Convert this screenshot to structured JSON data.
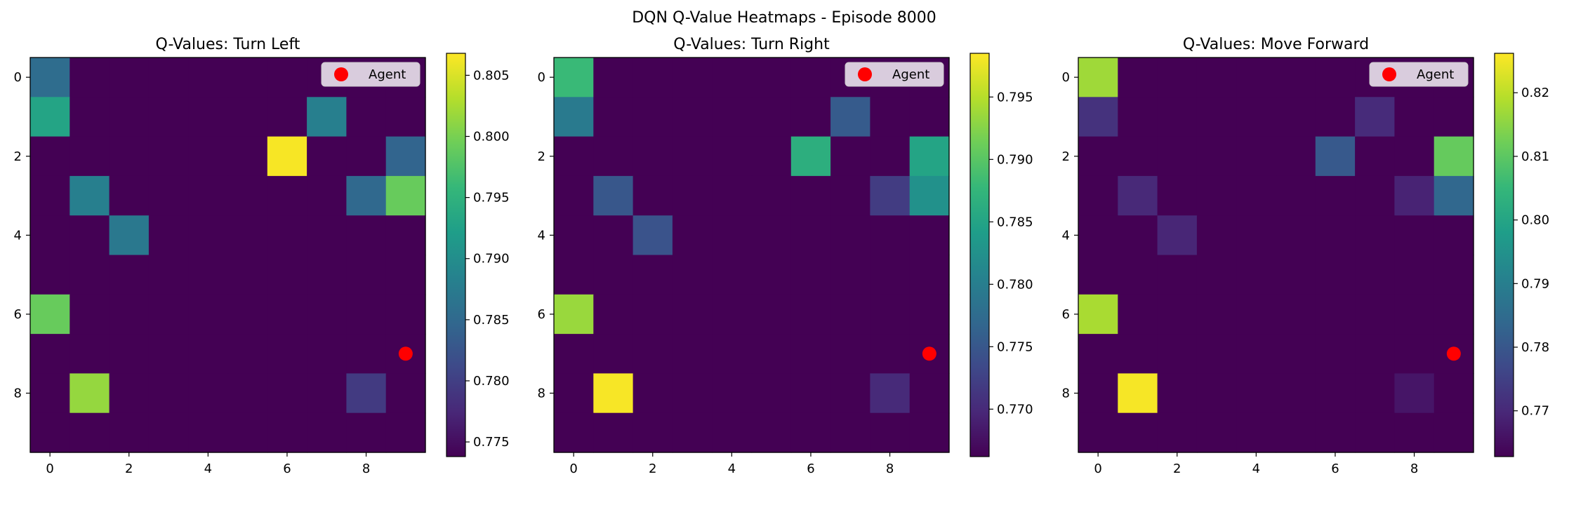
{
  "figure": {
    "suptitle": "DQN Q-Value Heatmaps - Episode 8000"
  },
  "colormap": {
    "name": "viridis",
    "stops": [
      "#440154",
      "#482878",
      "#3e4989",
      "#31688e",
      "#26828e",
      "#1f9e89",
      "#35b779",
      "#6ece58",
      "#b5de2b",
      "#fde725"
    ]
  },
  "agent_color": "#ff0000",
  "chart_data": [
    {
      "type": "heatmap",
      "title": "Q-Values: Turn Left",
      "x_ticks": [
        0,
        2,
        4,
        6,
        8
      ],
      "y_ticks": [
        0,
        2,
        4,
        6,
        8
      ],
      "grid_size": [
        10,
        10
      ],
      "base_value": 0.7738,
      "cells": [
        {
          "row": 0,
          "col": 0,
          "value": 0.7855
        },
        {
          "row": 1,
          "col": 0,
          "value": 0.793
        },
        {
          "row": 1,
          "col": 7,
          "value": 0.788
        },
        {
          "row": 2,
          "col": 6,
          "value": 0.8065
        },
        {
          "row": 2,
          "col": 9,
          "value": 0.7845
        },
        {
          "row": 3,
          "col": 1,
          "value": 0.788
        },
        {
          "row": 3,
          "col": 8,
          "value": 0.785
        },
        {
          "row": 3,
          "col": 9,
          "value": 0.799
        },
        {
          "row": 4,
          "col": 2,
          "value": 0.787
        },
        {
          "row": 6,
          "col": 0,
          "value": 0.799
        },
        {
          "row": 8,
          "col": 1,
          "value": 0.8015
        },
        {
          "row": 8,
          "col": 8,
          "value": 0.7795
        }
      ],
      "agent": {
        "x": 9,
        "y": 7,
        "label": "Agent"
      },
      "colorbar": {
        "min": 0.7738,
        "max": 0.8068,
        "ticks": [
          "0.775",
          "0.780",
          "0.785",
          "0.790",
          "0.795",
          "0.800",
          "0.805"
        ]
      }
    },
    {
      "type": "heatmap",
      "title": "Q-Values: Turn Right",
      "x_ticks": [
        0,
        2,
        4,
        6,
        8
      ],
      "y_ticks": [
        0,
        2,
        4,
        6,
        8
      ],
      "grid_size": [
        10,
        10
      ],
      "base_value": 0.7662,
      "cells": [
        {
          "row": 0,
          "col": 0,
          "value": 0.788
        },
        {
          "row": 1,
          "col": 0,
          "value": 0.7795
        },
        {
          "row": 1,
          "col": 7,
          "value": 0.7755
        },
        {
          "row": 2,
          "col": 6,
          "value": 0.7865
        },
        {
          "row": 2,
          "col": 9,
          "value": 0.785
        },
        {
          "row": 3,
          "col": 1,
          "value": 0.775
        },
        {
          "row": 3,
          "col": 8,
          "value": 0.772
        },
        {
          "row": 3,
          "col": 9,
          "value": 0.7825
        },
        {
          "row": 4,
          "col": 2,
          "value": 0.7745
        },
        {
          "row": 6,
          "col": 0,
          "value": 0.7935
        },
        {
          "row": 8,
          "col": 1,
          "value": 0.7982
        },
        {
          "row": 8,
          "col": 8,
          "value": 0.77
        }
      ],
      "agent": {
        "x": 9,
        "y": 7,
        "label": "Agent"
      },
      "colorbar": {
        "min": 0.7662,
        "max": 0.7985,
        "ticks": [
          "0.770",
          "0.775",
          "0.780",
          "0.785",
          "0.790",
          "0.795"
        ]
      }
    },
    {
      "type": "heatmap",
      "title": "Q-Values: Move Forward",
      "x_ticks": [
        0,
        2,
        4,
        6,
        8
      ],
      "y_ticks": [
        0,
        2,
        4,
        6,
        8
      ],
      "grid_size": [
        10,
        10
      ],
      "base_value": 0.7628,
      "cells": [
        {
          "row": 0,
          "col": 0,
          "value": 0.817
        },
        {
          "row": 1,
          "col": 0,
          "value": 0.772
        },
        {
          "row": 1,
          "col": 7,
          "value": 0.7705
        },
        {
          "row": 2,
          "col": 6,
          "value": 0.7805
        },
        {
          "row": 2,
          "col": 9,
          "value": 0.811
        },
        {
          "row": 3,
          "col": 1,
          "value": 0.77
        },
        {
          "row": 3,
          "col": 8,
          "value": 0.769
        },
        {
          "row": 3,
          "col": 9,
          "value": 0.784
        },
        {
          "row": 4,
          "col": 2,
          "value": 0.7695
        },
        {
          "row": 6,
          "col": 0,
          "value": 0.818
        },
        {
          "row": 8,
          "col": 1,
          "value": 0.8255
        },
        {
          "row": 8,
          "col": 8,
          "value": 0.7665
        }
      ],
      "agent": {
        "x": 9,
        "y": 7,
        "label": "Agent"
      },
      "colorbar": {
        "min": 0.7628,
        "max": 0.8262,
        "ticks": [
          "0.77",
          "0.78",
          "0.79",
          "0.80",
          "0.81",
          "0.82"
        ]
      }
    }
  ]
}
